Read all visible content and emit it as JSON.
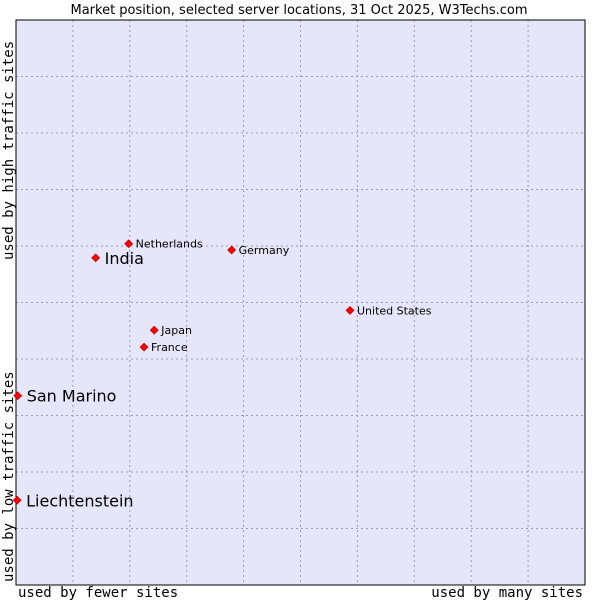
{
  "chart_data": {
    "type": "scatter",
    "title": "Market position, selected server locations, 31 Oct 2025, W3Techs.com",
    "xlabel_left": "used by fewer sites",
    "xlabel_right": "used by many sites",
    "ylabel_bottom": "used by low traffic sites",
    "ylabel_top": "used by high traffic sites",
    "xlim": [
      0,
      100
    ],
    "ylim": [
      0,
      100
    ],
    "grid": true,
    "colors": {
      "plot_bg": "#e6e6fa",
      "point": "#ff0000",
      "grid": "#9a9ab8",
      "frame": "#000000"
    },
    "points": [
      {
        "label": "Netherlands",
        "x": 19.8,
        "y": 60.4,
        "emphasis": false
      },
      {
        "label": "Germany",
        "x": 37.9,
        "y": 59.3,
        "emphasis": false
      },
      {
        "label": "India",
        "x": 14.0,
        "y": 57.9,
        "emphasis": true
      },
      {
        "label": "United States",
        "x": 58.7,
        "y": 48.6,
        "emphasis": false
      },
      {
        "label": "Japan",
        "x": 24.3,
        "y": 45.1,
        "emphasis": false
      },
      {
        "label": "France",
        "x": 22.5,
        "y": 42.1,
        "emphasis": false
      },
      {
        "label": "San Marino",
        "x": 0.3,
        "y": 33.5,
        "emphasis": true
      },
      {
        "label": "Liechtenstein",
        "x": 0.2,
        "y": 15.0,
        "emphasis": true
      }
    ]
  }
}
